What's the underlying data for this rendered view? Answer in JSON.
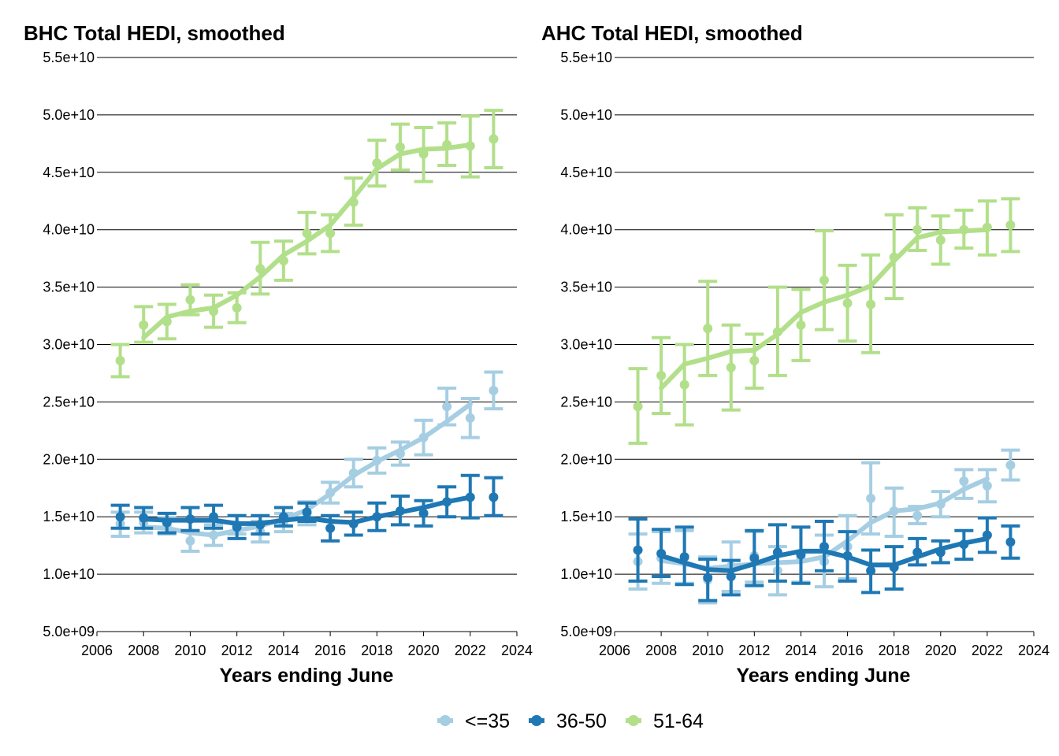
{
  "chart_data": [
    {
      "type": "line",
      "title": "BHC Total HEDI, smoothed",
      "xlabel": "Years ending June",
      "ylabel": "",
      "xlim": [
        2006,
        2024
      ],
      "ylim": [
        5000000000,
        55000000000
      ],
      "x_ticks": [
        2006,
        2008,
        2010,
        2012,
        2014,
        2016,
        2018,
        2020,
        2022,
        2024
      ],
      "y_ticks": [
        5000000000,
        10000000000,
        15000000000,
        20000000000,
        25000000000,
        30000000000,
        35000000000,
        40000000000,
        45000000000,
        50000000000,
        55000000000
      ],
      "y_tick_labels": [
        "5.0e+09",
        "1.0e+10",
        "1.5e+10",
        "2.0e+10",
        "2.5e+10",
        "3.0e+10",
        "3.5e+10",
        "4.0e+10",
        "4.5e+10",
        "5.0e+10",
        "5.5e+10"
      ],
      "grid": "horizontal",
      "series": [
        {
          "name": "<=35",
          "color": "#a6cee3",
          "x": [
            2007,
            2008,
            2009,
            2010,
            2011,
            2012,
            2013,
            2014,
            2015,
            2016,
            2017,
            2018,
            2019,
            2020,
            2021,
            2022,
            2023
          ],
          "points": [
            14400000000.0,
            14500000000.0,
            14200000000.0,
            12900000000.0,
            13400000000.0,
            14300000000.0,
            13700000000.0,
            14500000000.0,
            15300000000.0,
            17100000000.0,
            18800000000.0,
            19900000000.0,
            20500000000.0,
            21900000000.0,
            24600000000.0,
            23600000000.0,
            26000000000.0
          ],
          "lower": [
            13300000000.0,
            13600000000.0,
            13500000000.0,
            12000000000.0,
            12500000000.0,
            13500000000.0,
            12800000000.0,
            13700000000.0,
            14300000000.0,
            16200000000.0,
            17600000000.0,
            18800000000.0,
            19500000000.0,
            20400000000.0,
            23000000000.0,
            21900000000.0,
            24400000000.0
          ],
          "upper": [
            15400000000.0,
            15400000000.0,
            14900000000.0,
            13800000000.0,
            14300000000.0,
            15100000000.0,
            14600000000.0,
            15300000000.0,
            16300000000.0,
            18000000000.0,
            20000000000.0,
            21000000000.0,
            21500000000.0,
            23400000000.0,
            26200000000.0,
            25300000000.0,
            27600000000.0
          ],
          "smooth_x": [
            2008,
            2009,
            2010,
            2011,
            2012,
            2013,
            2014,
            2015,
            2016,
            2017,
            2018,
            2019,
            2020,
            2021,
            2022
          ],
          "smooth": [
            14100000000.0,
            14000000000.0,
            13600000000.0,
            13400000000.0,
            13800000000.0,
            14200000000.0,
            14800000000.0,
            15600000000.0,
            17000000000.0,
            18600000000.0,
            19800000000.0,
            20800000000.0,
            21900000000.0,
            23300000000.0,
            24800000000.0
          ]
        },
        {
          "name": "36-50",
          "color": "#1f78b4",
          "x": [
            2007,
            2008,
            2009,
            2010,
            2011,
            2012,
            2013,
            2014,
            2015,
            2016,
            2017,
            2018,
            2019,
            2020,
            2021,
            2022,
            2023
          ],
          "points": [
            15000000000.0,
            14900000000.0,
            14500000000.0,
            14800000000.0,
            15000000000.0,
            14100000000.0,
            14300000000.0,
            15000000000.0,
            15400000000.0,
            14000000000.0,
            14400000000.0,
            15000000000.0,
            15500000000.0,
            15300000000.0,
            16300000000.0,
            16700000000.0,
            16700000000.0
          ],
          "lower": [
            14000000000.0,
            14000000000.0,
            13600000000.0,
            13800000000.0,
            14000000000.0,
            13100000000.0,
            13500000000.0,
            14200000000.0,
            14600000000.0,
            12900000000.0,
            13400000000.0,
            13800000000.0,
            14300000000.0,
            14200000000.0,
            15000000000.0,
            14900000000.0,
            15100000000.0
          ],
          "upper": [
            16000000000.0,
            15800000000.0,
            15300000000.0,
            15800000000.0,
            16000000000.0,
            15100000000.0,
            15100000000.0,
            15800000000.0,
            16200000000.0,
            15100000000.0,
            15400000000.0,
            16200000000.0,
            16800000000.0,
            16400000000.0,
            17600000000.0,
            18600000000.0,
            18400000000.0
          ],
          "smooth_x": [
            2008,
            2009,
            2010,
            2011,
            2012,
            2013,
            2014,
            2015,
            2016,
            2017,
            2018,
            2019,
            2020,
            2021,
            2022
          ],
          "smooth": [
            14800000000.0,
            14700000000.0,
            14700000000.0,
            14700000000.0,
            14400000000.0,
            14400000000.0,
            14700000000.0,
            14900000000.0,
            14600000000.0,
            14500000000.0,
            15000000000.0,
            15400000000.0,
            15800000000.0,
            16300000000.0,
            16700000000.0
          ]
        },
        {
          "name": "51-64",
          "color": "#b2df8a",
          "x": [
            2007,
            2008,
            2009,
            2010,
            2011,
            2012,
            2013,
            2014,
            2015,
            2016,
            2017,
            2018,
            2019,
            2020,
            2021,
            2022,
            2023
          ],
          "points": [
            28600000000.0,
            31700000000.0,
            32000000000.0,
            33900000000.0,
            32900000000.0,
            33200000000.0,
            36600000000.0,
            37300000000.0,
            39700000000.0,
            39700000000.0,
            42400000000.0,
            45800000000.0,
            47200000000.0,
            46600000000.0,
            47400000000.0,
            47300000000.0,
            47900000000.0
          ],
          "lower": [
            27200000000.0,
            30200000000.0,
            30500000000.0,
            32600000000.0,
            31500000000.0,
            31900000000.0,
            34400000000.0,
            35600000000.0,
            37900000000.0,
            38100000000.0,
            40400000000.0,
            43800000000.0,
            45200000000.0,
            44200000000.0,
            45600000000.0,
            44600000000.0,
            45400000000.0
          ],
          "upper": [
            30000000000.0,
            33300000000.0,
            33500000000.0,
            35200000000.0,
            34300000000.0,
            34500000000.0,
            38900000000.0,
            39000000000.0,
            41500000000.0,
            41300000000.0,
            44500000000.0,
            47800000000.0,
            49200000000.0,
            48900000000.0,
            49300000000.0,
            49900000000.0,
            50400000000.0
          ],
          "smooth_x": [
            2008,
            2009,
            2010,
            2011,
            2012,
            2013,
            2014,
            2015,
            2016,
            2017,
            2018,
            2019,
            2020,
            2021,
            2022
          ],
          "smooth": [
            30600000000.0,
            32400000000.0,
            32900000000.0,
            33200000000.0,
            34300000000.0,
            35900000000.0,
            37800000000.0,
            39000000000.0,
            40400000000.0,
            42800000000.0,
            45300000000.0,
            46600000000.0,
            47000000000.0,
            47100000000.0,
            47400000000.0
          ]
        }
      ]
    },
    {
      "type": "line",
      "title": "AHC Total HEDI, smoothed",
      "xlabel": "Years ending June",
      "ylabel": "",
      "xlim": [
        2006,
        2024
      ],
      "ylim": [
        5000000000,
        55000000000
      ],
      "x_ticks": [
        2006,
        2008,
        2010,
        2012,
        2014,
        2016,
        2018,
        2020,
        2022,
        2024
      ],
      "y_ticks": [
        5000000000,
        10000000000,
        15000000000,
        20000000000,
        25000000000,
        30000000000,
        35000000000,
        40000000000,
        45000000000,
        50000000000,
        55000000000
      ],
      "y_tick_labels": [
        "5.0e+09",
        "1.0e+10",
        "1.5e+10",
        "2.0e+10",
        "2.5e+10",
        "3.0e+10",
        "3.5e+10",
        "4.0e+10",
        "4.5e+10",
        "5.0e+10",
        "5.5e+10"
      ],
      "grid": "horizontal",
      "series": [
        {
          "name": "<=35",
          "color": "#a6cee3",
          "x": [
            2007,
            2008,
            2009,
            2010,
            2011,
            2012,
            2013,
            2014,
            2015,
            2016,
            2017,
            2018,
            2019,
            2020,
            2021,
            2022,
            2023
          ],
          "points": [
            11100000000.0,
            11400000000.0,
            11500000000.0,
            9500000000.0,
            10700000000.0,
            11600000000.0,
            10300000000.0,
            11400000000.0,
            11100000000.0,
            12400000000.0,
            16600000000.0,
            15500000000.0,
            15100000000.0,
            16100000000.0,
            18100000000.0,
            17700000000.0,
            19500000000.0
          ],
          "lower": [
            8700000000.0,
            9200000000.0,
            9200000000.0,
            7500000000.0,
            8500000000.0,
            9300000000.0,
            8200000000.0,
            9300000000.0,
            8900000000.0,
            9600000000.0,
            13500000000.0,
            13300000000.0,
            14400000000.0,
            15000000000.0,
            16600000000.0,
            16300000000.0,
            18200000000.0
          ],
          "upper": [
            13500000000.0,
            13700000000.0,
            13800000000.0,
            11500000000.0,
            12800000000.0,
            13700000000.0,
            12400000000.0,
            14100000000.0,
            13400000000.0,
            15100000000.0,
            19700000000.0,
            17500000000.0,
            15900000000.0,
            17200000000.0,
            19100000000.0,
            19100000000.0,
            20800000000.0
          ],
          "smooth_x": [
            2008,
            2009,
            2010,
            2011,
            2012,
            2013,
            2014,
            2015,
            2016,
            2017,
            2018,
            2019,
            2020,
            2021,
            2022
          ],
          "smooth": [
            11200000000.0,
            10900000000.0,
            10500000000.0,
            10700000000.0,
            10900000000.0,
            11000000000.0,
            11100000000.0,
            11500000000.0,
            12900000000.0,
            14500000000.0,
            15500000000.0,
            15700000000.0,
            16200000000.0,
            17400000000.0,
            18300000000.0
          ]
        },
        {
          "name": "36-50",
          "color": "#1f78b4",
          "x": [
            2007,
            2008,
            2009,
            2010,
            2011,
            2012,
            2013,
            2014,
            2015,
            2016,
            2017,
            2018,
            2019,
            2020,
            2021,
            2022,
            2023
          ],
          "points": [
            12100000000.0,
            11800000000.0,
            11500000000.0,
            9700000000.0,
            9800000000.0,
            11400000000.0,
            11900000000.0,
            11700000000.0,
            12400000000.0,
            11600000000.0,
            10300000000.0,
            10600000000.0,
            11900000000.0,
            11900000000.0,
            12600000000.0,
            13400000000.0,
            12800000000.0
          ],
          "lower": [
            9400000000.0,
            9800000000.0,
            9100000000.0,
            7700000000.0,
            8200000000.0,
            9000000000.0,
            9400000000.0,
            9200000000.0,
            10300000000.0,
            9400000000.0,
            8400000000.0,
            8700000000.0,
            10800000000.0,
            11000000000.0,
            11300000000.0,
            11900000000.0,
            11400000000.0
          ],
          "upper": [
            14800000000.0,
            13900000000.0,
            14100000000.0,
            11300000000.0,
            11200000000.0,
            13800000000.0,
            14300000000.0,
            14100000000.0,
            14600000000.0,
            13700000000.0,
            12100000000.0,
            12400000000.0,
            13100000000.0,
            12900000000.0,
            13800000000.0,
            14900000000.0,
            14200000000.0
          ],
          "smooth_x": [
            2008,
            2009,
            2010,
            2011,
            2012,
            2013,
            2014,
            2015,
            2016,
            2017,
            2018,
            2019,
            2020,
            2021,
            2022
          ],
          "smooth": [
            11600000000.0,
            11000000000.0,
            10400000000.0,
            10300000000.0,
            10900000000.0,
            11600000000.0,
            12000000000.0,
            12000000000.0,
            11500000000.0,
            10800000000.0,
            10800000000.0,
            11500000000.0,
            12200000000.0,
            12700000000.0,
            13100000000.0
          ]
        },
        {
          "name": "51-64",
          "color": "#b2df8a",
          "x": [
            2007,
            2008,
            2009,
            2010,
            2011,
            2012,
            2013,
            2014,
            2015,
            2016,
            2017,
            2018,
            2019,
            2020,
            2021,
            2022,
            2023
          ],
          "points": [
            24600000000.0,
            27300000000.0,
            26500000000.0,
            31400000000.0,
            28000000000.0,
            28600000000.0,
            31100000000.0,
            31700000000.0,
            35600000000.0,
            33600000000.0,
            33500000000.0,
            37600000000.0,
            40000000000.0,
            39100000000.0,
            40000000000.0,
            40200000000.0,
            40400000000.0
          ],
          "lower": [
            21400000000.0,
            24000000000.0,
            23000000000.0,
            27300000000.0,
            24300000000.0,
            26200000000.0,
            27300000000.0,
            28600000000.0,
            31300000000.0,
            30300000000.0,
            29300000000.0,
            34000000000.0,
            38200000000.0,
            37000000000.0,
            38400000000.0,
            37800000000.0,
            38100000000.0
          ],
          "upper": [
            27900000000.0,
            30600000000.0,
            30000000000.0,
            35500000000.0,
            31700000000.0,
            30900000000.0,
            35000000000.0,
            34800000000.0,
            39900000000.0,
            36900000000.0,
            37800000000.0,
            41300000000.0,
            41900000000.0,
            41200000000.0,
            41700000000.0,
            42500000000.0,
            42700000000.0
          ],
          "smooth_x": [
            2008,
            2009,
            2010,
            2011,
            2012,
            2013,
            2014,
            2015,
            2016,
            2017,
            2018,
            2019,
            2020,
            2021,
            2022
          ],
          "smooth": [
            26200000000.0,
            28300000000.0,
            28800000000.0,
            29400000000.0,
            29500000000.0,
            30900000000.0,
            32800000000.0,
            33700000000.0,
            34300000000.0,
            35100000000.0,
            37300000000.0,
            39300000000.0,
            39800000000.0,
            39900000000.0,
            40000000000.0
          ]
        }
      ]
    }
  ],
  "legend": {
    "position": "bottom",
    "items": [
      {
        "label": "<=35",
        "color": "#a6cee3"
      },
      {
        "label": "36-50",
        "color": "#1f78b4"
      },
      {
        "label": "51-64",
        "color": "#b2df8a"
      }
    ]
  }
}
